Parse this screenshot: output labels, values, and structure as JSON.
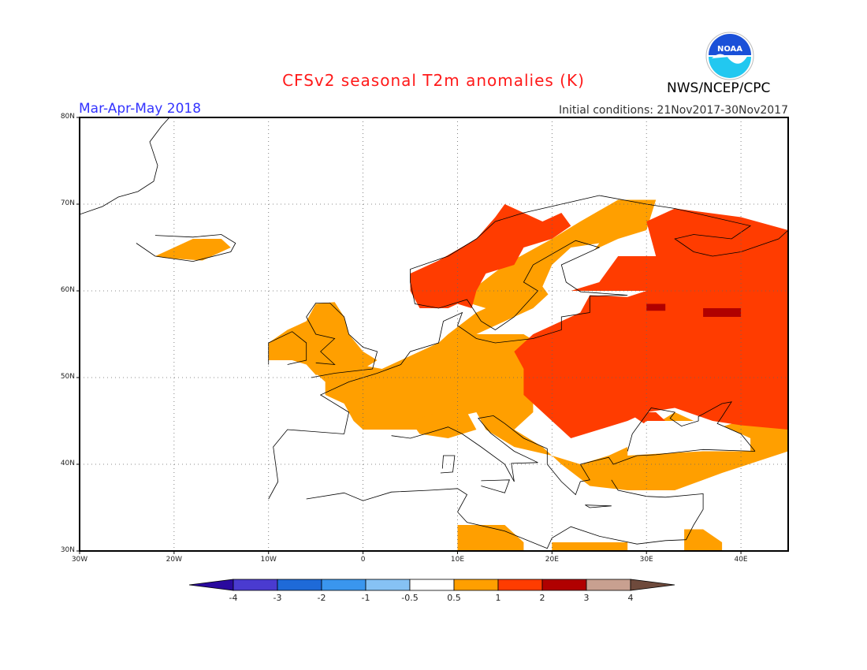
{
  "header": {
    "title": "CFSv2 seasonal T2m anomalies (K)",
    "period": "Mar-Apr-May 2018",
    "initial_conditions": "Initial conditions: 21Nov2017-30Nov2017",
    "agency": "NWS/NCEP/CPC",
    "logo_text": "NOAA"
  },
  "colors": {
    "title": "#ff1a1a",
    "period": "#3333ff",
    "logo_blue": "#1a50d8",
    "logo_cyan": "#22c8f0"
  },
  "axes": {
    "x_ticks": [
      "30W",
      "20W",
      "10W",
      "0",
      "10E",
      "20E",
      "30E",
      "40E"
    ],
    "y_ticks": [
      "30N",
      "40N",
      "50N",
      "60N",
      "70N",
      "80N"
    ],
    "lon_range": [
      -30,
      45
    ],
    "lat_range": [
      30,
      80
    ],
    "grid": "dotted"
  },
  "colorbar": {
    "labels": [
      "-4",
      "-3",
      "-2",
      "-1",
      "-0.5",
      "0.5",
      "1",
      "2",
      "3",
      "4"
    ],
    "colors": [
      "#2a0a9e",
      "#4a3bd0",
      "#1e6ad8",
      "#3a96ee",
      "#86c2f4",
      "#ffffff",
      "#ff9f00",
      "#ff3c00",
      "#b00000",
      "#c8a090",
      "#6e4a3c"
    ]
  }
}
